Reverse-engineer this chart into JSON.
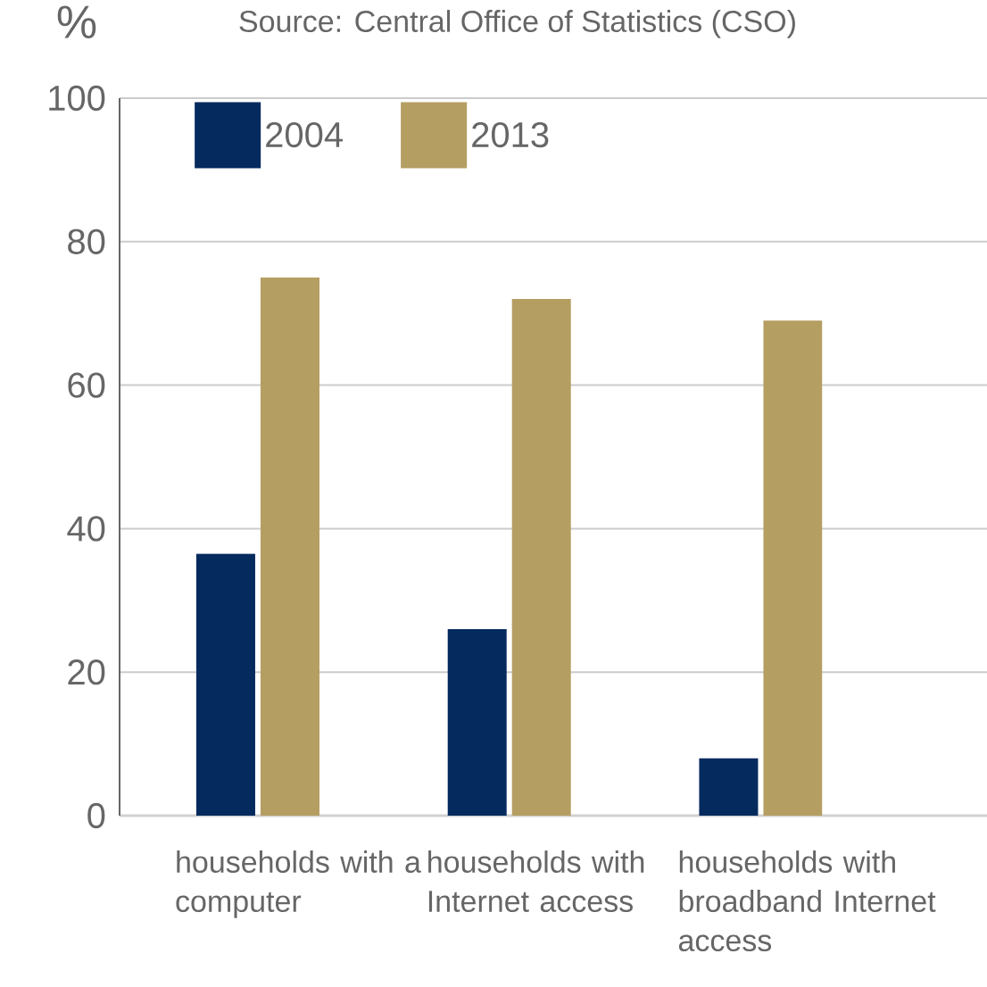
{
  "chart_data": {
    "type": "bar",
    "annotations": [
      "Source: Central Office of Statistics (CSO)"
    ],
    "ylabel": "%",
    "categories": [
      "households with a computer",
      "households with Internet access",
      "households with broadband Internet access"
    ],
    "series": [
      {
        "name": "2004",
        "color": "#042a5e",
        "values": [
          36.5,
          26,
          8
        ]
      },
      {
        "name": "2013",
        "color": "#b49e62",
        "values": [
          75,
          72,
          69
        ]
      }
    ],
    "ylim": [
      0,
      100
    ],
    "yticks": [
      0,
      20,
      40,
      60,
      80,
      100
    ],
    "grid": "y",
    "legend": "top left"
  }
}
